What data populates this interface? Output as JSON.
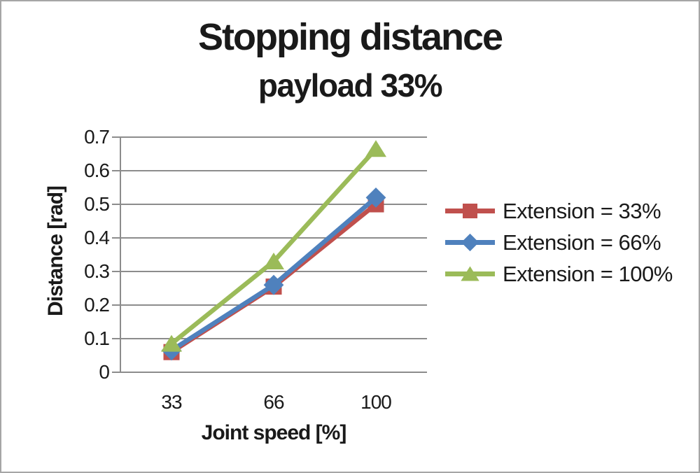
{
  "chart_data": {
    "type": "line",
    "title": "Stopping distance",
    "subtitle": "payload 33%",
    "xlabel": "Joint speed [%]",
    "ylabel": "Distance [rad]",
    "categories": [
      "33",
      "66",
      "100"
    ],
    "ylim": [
      0,
      0.7
    ],
    "y_tick_labels": [
      "0",
      "0.1",
      "0.2",
      "0.3",
      "0.4",
      "0.5",
      "0.6",
      "0.7"
    ],
    "grid": "horizontal-gridlines-on",
    "legend_position": "right-middle",
    "series": [
      {
        "name": "Extension = 33%",
        "marker": "square",
        "color": "#C0504D",
        "values": [
          0.06,
          0.255,
          0.5
        ]
      },
      {
        "name": "Extension = 66%",
        "marker": "diamond",
        "color": "#4F81BD",
        "values": [
          0.065,
          0.26,
          0.52
        ]
      },
      {
        "name": "Extension = 100%",
        "marker": "triangle",
        "color": "#9BBB59",
        "values": [
          0.085,
          0.33,
          0.665
        ]
      }
    ]
  },
  "colors": {
    "text": "#1A1A1A",
    "gridline": "#8C8C8C",
    "axis": "#8C8C8C",
    "background": "#FFFFFF",
    "frame_border": "#A6A6A6"
  }
}
